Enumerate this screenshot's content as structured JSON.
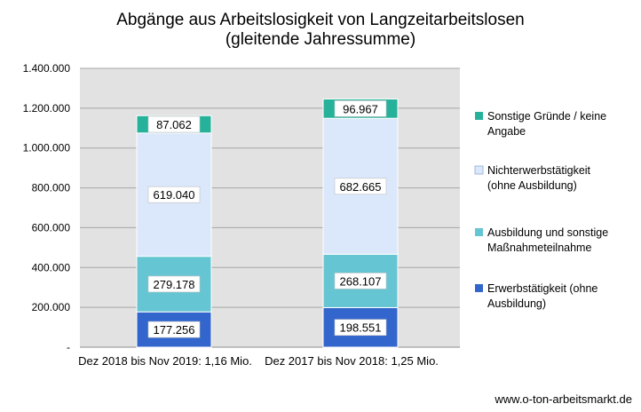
{
  "chart_data": {
    "type": "bar",
    "stacked": true,
    "title": [
      "Abgänge aus Arbeitslosigkeit von Langzeitarbeitslosen",
      "(gleitende Jahressumme)"
    ],
    "xlabel": "",
    "ylabel": "",
    "categories": [
      "Dez 2018 bis Nov 2019: 1,16 Mio.",
      "Dez 2017 bis Nov 2018: 1,25 Mio."
    ],
    "ylim": [
      0,
      1400000
    ],
    "y_ticks": [
      0,
      200000,
      400000,
      600000,
      800000,
      1000000,
      1200000,
      1400000
    ],
    "y_tick_labels": [
      "-",
      "200.000",
      "400.000",
      "600.000",
      "800.000",
      "1.000.000",
      "1.200.000",
      "1.400.000"
    ],
    "grid": true,
    "legend_position": "right",
    "series": [
      {
        "name": "Erwerbstätigkeit (ohne Ausbildung)",
        "legend_lines": [
          "Erwerbstätigkeit (ohne",
          "Ausbildung)"
        ],
        "color": "#3366cc",
        "values": [
          177256,
          198551
        ],
        "labels": [
          "177.256",
          "198.551"
        ]
      },
      {
        "name": "Ausbildung und sonstige Maßnahmeteilnahme",
        "legend_lines": [
          "Ausbildung und sonstige",
          "Maßnahmeteilnahme"
        ],
        "color": "#66c5d2",
        "values": [
          279178,
          268107
        ],
        "labels": [
          "279.178",
          "268.107"
        ]
      },
      {
        "name": "Nichterwerbstätigkeit (ohne Ausbildung)",
        "legend_lines": [
          "Nichterwerbstätigkeit",
          "(ohne Ausbildung)"
        ],
        "color": "#dbe8fb",
        "values": [
          619040,
          682665
        ],
        "labels": [
          "619.040",
          "682.665"
        ]
      },
      {
        "name": "Sonstige Gründe / keine Angabe",
        "legend_lines": [
          "Sonstige Gründe / keine",
          "Angabe"
        ],
        "color": "#26b29a",
        "values": [
          87062,
          96967
        ],
        "labels": [
          "87.062",
          "96.967"
        ]
      }
    ],
    "footer": "www.o-ton-arbeitsmarkt.de"
  }
}
